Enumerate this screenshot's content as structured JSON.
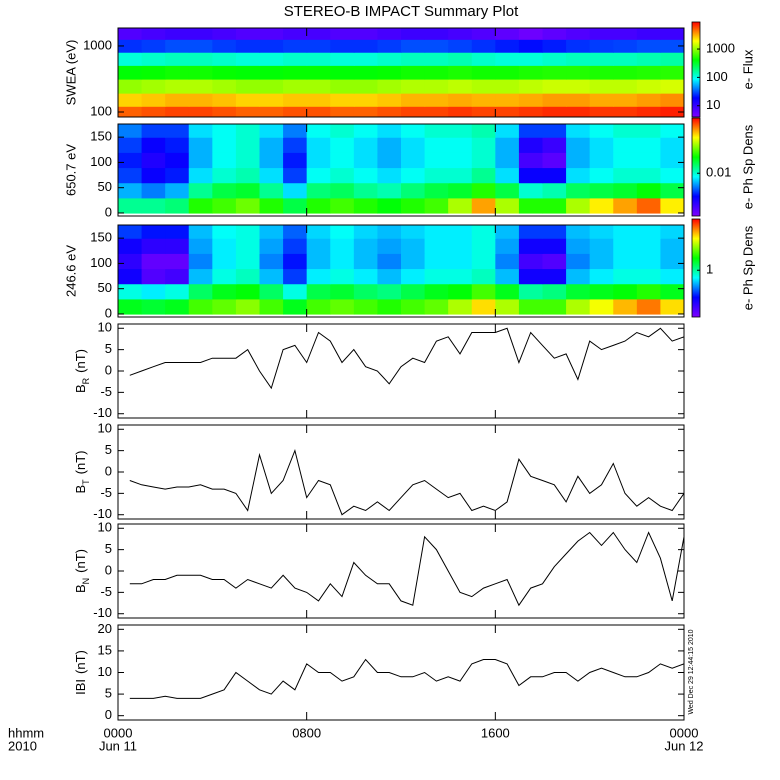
{
  "title": "STEREO-B IMPACT Summary Plot",
  "timestamp": "Wed Dec 29 12:44:15 2010",
  "x_axis": {
    "label": "hhmm",
    "year": "2010",
    "xlim": [
      0,
      24
    ],
    "ticks": [
      {
        "value": 0,
        "label": "0000"
      },
      {
        "value": 8,
        "label": "0800"
      },
      {
        "value": 16,
        "label": "1600"
      },
      {
        "value": 24,
        "label": "0000"
      }
    ],
    "dates": [
      {
        "value": 0,
        "label": "Jun 11"
      },
      {
        "value": 24,
        "label": "Jun 12"
      }
    ]
  },
  "chart_data": [
    {
      "type": "heatmap",
      "ylabel": "SWEA (eV)",
      "log_y": true,
      "ylim": [
        84,
        1870
      ],
      "yticks": [
        100,
        1000
      ],
      "colors": [
        "#7f00ff",
        "#0000ff",
        "#00ffff",
        "#00ff00",
        "#ffff00",
        "#ff0000"
      ],
      "colorbar": {
        "label": "e- Flux",
        "lim": [
          4,
          9000
        ],
        "ticks": [
          10,
          100,
          1000
        ]
      },
      "x": [
        0.5,
        1.5,
        2.5,
        3.5,
        4.5,
        5.5,
        6.5,
        7.5,
        8.5,
        9.5,
        10.5,
        11.5,
        12.5,
        13.5,
        14.5,
        15.5,
        16.5,
        17.5,
        18.5,
        19.5,
        20.5,
        21.5,
        22.5,
        23.5
      ],
      "y": [
        100,
        150,
        250,
        400,
        650,
        1000,
        1600
      ],
      "values": [
        [
          5000,
          5500,
          6000,
          6000,
          5500,
          5000,
          5000,
          5500,
          5500,
          5000,
          5000,
          5500,
          6000,
          6000,
          6500,
          6000,
          6000,
          6500,
          7000,
          7000,
          6500,
          6500,
          7000,
          7500
        ],
        [
          2500,
          2700,
          3000,
          3000,
          2800,
          2500,
          2500,
          2700,
          2700,
          2500,
          2500,
          2700,
          3000,
          3000,
          3200,
          3000,
          3000,
          3200,
          3500,
          3500,
          3200,
          3200,
          3500,
          3800
        ],
        [
          1000,
          1100,
          1200,
          1200,
          1100,
          1000,
          1000,
          1100,
          1100,
          1000,
          1000,
          1100,
          1200,
          1200,
          1300,
          1200,
          1200,
          1300,
          1400,
          1400,
          1300,
          1300,
          1400,
          1500
        ],
        [
          400,
          420,
          450,
          450,
          420,
          400,
          400,
          420,
          420,
          400,
          400,
          420,
          450,
          450,
          480,
          450,
          450,
          480,
          500,
          500,
          480,
          480,
          500,
          520
        ],
        [
          110,
          120,
          130,
          130,
          120,
          110,
          110,
          120,
          120,
          110,
          110,
          120,
          130,
          130,
          140,
          120,
          110,
          110,
          120,
          130,
          130,
          130,
          140,
          150
        ],
        [
          25,
          27,
          30,
          30,
          27,
          25,
          25,
          27,
          27,
          25,
          25,
          27,
          30,
          30,
          28,
          25,
          22,
          20,
          22,
          25,
          27,
          28,
          30,
          30
        ],
        [
          7,
          8,
          9,
          9,
          8,
          7,
          7,
          8,
          8,
          7,
          7,
          8,
          9,
          9,
          8,
          7,
          6,
          5,
          6,
          7,
          8,
          8,
          9,
          9
        ]
      ]
    },
    {
      "type": "heatmap",
      "ylabel": "650.7 eV",
      "log_y": false,
      "ylim": [
        -6,
        176
      ],
      "yticks": [
        0,
        50,
        100,
        150
      ],
      "colors": [
        "#7f00ff",
        "#0000ff",
        "#00ffff",
        "#00ff00",
        "#ffff00",
        "#ff0000"
      ],
      "colorbar": {
        "label": "e- Ph Sp Dens",
        "lim": [
          0.002,
          0.08
        ],
        "ticks": [
          0.01
        ]
      },
      "x": [
        0.5,
        1.5,
        2.5,
        3.5,
        4.5,
        5.5,
        6.5,
        7.5,
        8.5,
        9.5,
        10.5,
        11.5,
        12.5,
        13.5,
        14.5,
        15.5,
        16.5,
        17.5,
        18.5,
        19.5,
        20.5,
        21.5,
        22.5,
        23.5
      ],
      "y": [
        15,
        45,
        75,
        105,
        135,
        165
      ],
      "values": [
        [
          0.012,
          0.012,
          0.013,
          0.02,
          0.022,
          0.025,
          0.02,
          0.015,
          0.02,
          0.022,
          0.02,
          0.018,
          0.02,
          0.022,
          0.03,
          0.05,
          0.03,
          0.02,
          0.02,
          0.03,
          0.04,
          0.05,
          0.06,
          0.04
        ],
        [
          0.007,
          0.006,
          0.007,
          0.012,
          0.015,
          0.016,
          0.012,
          0.008,
          0.013,
          0.014,
          0.012,
          0.011,
          0.013,
          0.015,
          0.016,
          0.02,
          0.015,
          0.01,
          0.011,
          0.014,
          0.015,
          0.016,
          0.018,
          0.015
        ],
        [
          0.005,
          0.004,
          0.0045,
          0.008,
          0.01,
          0.011,
          0.008,
          0.005,
          0.009,
          0.01,
          0.009,
          0.008,
          0.009,
          0.01,
          0.01,
          0.012,
          0.008,
          0.004,
          0.004,
          0.008,
          0.009,
          0.01,
          0.01,
          0.009
        ],
        [
          0.0045,
          0.0035,
          0.004,
          0.007,
          0.009,
          0.01,
          0.007,
          0.0045,
          0.008,
          0.009,
          0.008,
          0.007,
          0.008,
          0.009,
          0.009,
          0.01,
          0.007,
          0.0028,
          0.0025,
          0.007,
          0.008,
          0.009,
          0.009,
          0.008
        ],
        [
          0.005,
          0.004,
          0.0045,
          0.007,
          0.009,
          0.01,
          0.007,
          0.005,
          0.008,
          0.009,
          0.008,
          0.007,
          0.008,
          0.009,
          0.009,
          0.01,
          0.007,
          0.0035,
          0.003,
          0.007,
          0.008,
          0.009,
          0.009,
          0.008
        ],
        [
          0.006,
          0.005,
          0.005,
          0.008,
          0.009,
          0.01,
          0.008,
          0.006,
          0.009,
          0.01,
          0.009,
          0.008,
          0.009,
          0.01,
          0.01,
          0.011,
          0.008,
          0.005,
          0.005,
          0.008,
          0.009,
          0.01,
          0.01,
          0.009
        ]
      ]
    },
    {
      "type": "heatmap",
      "ylabel": "246.6 eV",
      "log_y": false,
      "ylim": [
        -6,
        176
      ],
      "yticks": [
        0,
        50,
        100,
        150
      ],
      "colors": [
        "#7f00ff",
        "#0000ff",
        "#00ffff",
        "#00ff00",
        "#ffff00",
        "#ff0000"
      ],
      "colorbar": {
        "label": "e- Ph Sp Dens",
        "lim": [
          0.15,
          8
        ],
        "ticks": [
          1
        ]
      },
      "x": [
        0.5,
        1.5,
        2.5,
        3.5,
        4.5,
        5.5,
        6.5,
        7.5,
        8.5,
        9.5,
        10.5,
        11.5,
        12.5,
        13.5,
        14.5,
        15.5,
        16.5,
        17.5,
        18.5,
        19.5,
        20.5,
        21.5,
        22.5,
        23.5
      ],
      "y": [
        15,
        45,
        75,
        105,
        135,
        165
      ],
      "values": [
        [
          1.5,
          1.4,
          1.5,
          2,
          2.2,
          2.5,
          2,
          1.5,
          2,
          2.2,
          2,
          1.8,
          2,
          2.2,
          2.8,
          4,
          2.8,
          2,
          2,
          2.8,
          3.5,
          4.5,
          5.5,
          4
        ],
        [
          0.8,
          0.7,
          0.8,
          1.2,
          1.5,
          1.6,
          1.2,
          0.8,
          1.3,
          1.4,
          1.2,
          1.1,
          1.3,
          1.5,
          1.6,
          2,
          1.5,
          1,
          1.1,
          1.4,
          1.5,
          1.6,
          1.8,
          1.5
        ],
        [
          0.3,
          0.2,
          0.22,
          0.6,
          0.8,
          0.9,
          0.6,
          0.4,
          0.7,
          0.8,
          0.7,
          0.6,
          0.7,
          0.8,
          0.8,
          0.9,
          0.6,
          0.3,
          0.3,
          0.6,
          0.7,
          0.8,
          0.8,
          0.7
        ],
        [
          0.25,
          0.18,
          0.18,
          0.5,
          0.7,
          0.8,
          0.5,
          0.35,
          0.6,
          0.7,
          0.6,
          0.5,
          0.6,
          0.7,
          0.7,
          0.8,
          0.5,
          0.22,
          0.2,
          0.5,
          0.6,
          0.7,
          0.7,
          0.6
        ],
        [
          0.3,
          0.25,
          0.25,
          0.55,
          0.7,
          0.8,
          0.55,
          0.4,
          0.6,
          0.7,
          0.6,
          0.55,
          0.6,
          0.7,
          0.7,
          0.8,
          0.55,
          0.3,
          0.3,
          0.55,
          0.6,
          0.7,
          0.7,
          0.6
        ],
        [
          0.4,
          0.35,
          0.35,
          0.6,
          0.75,
          0.8,
          0.6,
          0.45,
          0.65,
          0.75,
          0.65,
          0.6,
          0.65,
          0.7,
          0.7,
          0.8,
          0.6,
          0.4,
          0.4,
          0.6,
          0.65,
          0.7,
          0.7,
          0.65
        ]
      ]
    },
    {
      "type": "line",
      "ylabel": {
        "main": "B",
        "sub": "R",
        "unit": "(nT)"
      },
      "color": "#000000",
      "ylim": [
        -11,
        11
      ],
      "yticks": [
        -10,
        -5,
        0,
        5,
        10
      ],
      "x": [
        0.5,
        1,
        1.5,
        2,
        2.5,
        3,
        3.5,
        4,
        4.5,
        5,
        5.5,
        6,
        6.5,
        7,
        7.5,
        8,
        8.5,
        9,
        9.5,
        10,
        10.5,
        11,
        11.5,
        12,
        12.5,
        13,
        13.5,
        14,
        14.5,
        15,
        15.5,
        16,
        16.5,
        17,
        17.5,
        18,
        18.5,
        19,
        19.5,
        20,
        20.5,
        21,
        21.5,
        22,
        22.5,
        23,
        23.5,
        24
      ],
      "values": [
        -1,
        0,
        1,
        2,
        2,
        2,
        2,
        3,
        3,
        3,
        5,
        0,
        -4,
        5,
        6,
        2,
        9,
        7,
        2,
        5,
        1,
        0,
        -3,
        1,
        3,
        2,
        7,
        8,
        4,
        9,
        9,
        9,
        10,
        2,
        9,
        6,
        3,
        4,
        -2,
        7,
        5,
        6,
        7,
        9,
        8,
        10,
        7,
        8
      ]
    },
    {
      "type": "line",
      "ylabel": {
        "main": "B",
        "sub": "T",
        "unit": "(nT)"
      },
      "color": "#000000",
      "ylim": [
        -11,
        11
      ],
      "yticks": [
        -10,
        -5,
        0,
        5,
        10
      ],
      "x": [
        0.5,
        1,
        1.5,
        2,
        2.5,
        3,
        3.5,
        4,
        4.5,
        5,
        5.5,
        6,
        6.5,
        7,
        7.5,
        8,
        8.5,
        9,
        9.5,
        10,
        10.5,
        11,
        11.5,
        12,
        12.5,
        13,
        13.5,
        14,
        14.5,
        15,
        15.5,
        16,
        16.5,
        17,
        17.5,
        18,
        18.5,
        19,
        19.5,
        20,
        20.5,
        21,
        21.5,
        22,
        22.5,
        23,
        23.5,
        24
      ],
      "values": [
        -2,
        -3,
        -3.5,
        -4,
        -3.5,
        -3.5,
        -3,
        -4,
        -4,
        -5,
        -9,
        4,
        -5,
        -2,
        5,
        -6,
        -2,
        -3,
        -10,
        -8,
        -9,
        -7,
        -9,
        -6,
        -3,
        -2,
        -4,
        -6,
        -5,
        -9,
        -8,
        -9,
        -7,
        3,
        -1,
        -2,
        -3,
        -7,
        -1,
        -5,
        -3,
        2,
        -5,
        -8,
        -6,
        -8,
        -9,
        -5
      ]
    },
    {
      "type": "line",
      "ylabel": {
        "main": "B",
        "sub": "N",
        "unit": "(nT)"
      },
      "color": "#000000",
      "ylim": [
        -11,
        11
      ],
      "yticks": [
        -10,
        -5,
        0,
        5,
        10
      ],
      "x": [
        0.5,
        1,
        1.5,
        2,
        2.5,
        3,
        3.5,
        4,
        4.5,
        5,
        5.5,
        6,
        6.5,
        7,
        7.5,
        8,
        8.5,
        9,
        9.5,
        10,
        10.5,
        11,
        11.5,
        12,
        12.5,
        13,
        13.5,
        14,
        14.5,
        15,
        15.5,
        16,
        16.5,
        17,
        17.5,
        18,
        18.5,
        19,
        19.5,
        20,
        20.5,
        21,
        21.5,
        22,
        22.5,
        23,
        23.5,
        24
      ],
      "values": [
        -3,
        -3,
        -2,
        -2,
        -1,
        -1,
        -1,
        -2,
        -2,
        -4,
        -2,
        -3,
        -4,
        -1,
        -4,
        -5,
        -7,
        -3,
        -6,
        2,
        -1,
        -3,
        -3,
        -7,
        -8,
        8,
        5,
        0,
        -5,
        -6,
        -4,
        -3,
        -2,
        -8,
        -4,
        -3,
        1,
        4,
        7,
        9,
        6,
        9,
        5,
        2,
        9,
        3,
        -7,
        8
      ]
    },
    {
      "type": "line",
      "ylabel": {
        "main": "IBI",
        "unit": "(nT)"
      },
      "color": "#000000",
      "ylim": [
        -1,
        21
      ],
      "yticks": [
        0,
        5,
        10,
        15,
        20
      ],
      "x": [
        0.5,
        1,
        1.5,
        2,
        2.5,
        3,
        3.5,
        4,
        4.5,
        5,
        5.5,
        6,
        6.5,
        7,
        7.5,
        8,
        8.5,
        9,
        9.5,
        10,
        10.5,
        11,
        11.5,
        12,
        12.5,
        13,
        13.5,
        14,
        14.5,
        15,
        15.5,
        16,
        16.5,
        17,
        17.5,
        18,
        18.5,
        19,
        19.5,
        20,
        20.5,
        21,
        21.5,
        22,
        22.5,
        23,
        23.5,
        24
      ],
      "values": [
        4,
        4,
        4,
        4.5,
        4,
        4,
        4,
        5,
        6,
        10,
        8,
        6,
        5,
        8,
        6,
        12,
        10,
        10,
        8,
        9,
        13,
        10,
        10,
        9,
        9,
        10,
        8,
        9,
        8,
        12,
        13,
        13,
        12,
        7,
        9,
        9,
        10,
        10,
        8,
        10,
        11,
        10,
        9,
        9,
        10,
        12,
        11,
        12
      ]
    }
  ]
}
